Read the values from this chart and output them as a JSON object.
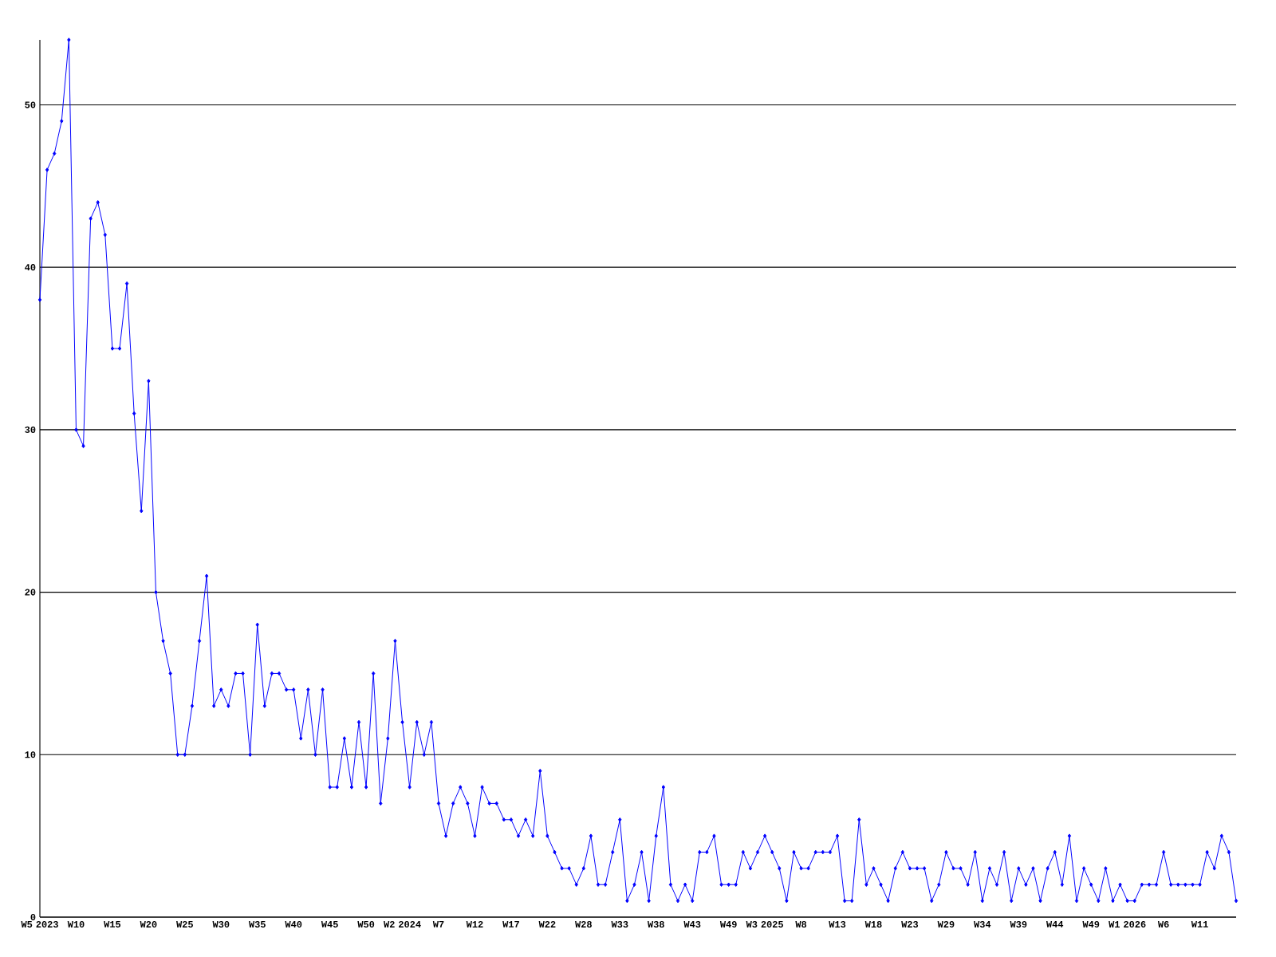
{
  "chart_data": {
    "type": "line",
    "categories": [
      "W5 2023",
      null,
      null,
      null,
      null,
      "W10",
      null,
      null,
      null,
      null,
      "W15",
      null,
      null,
      null,
      null,
      "W20",
      null,
      null,
      null,
      null,
      "W25",
      null,
      null,
      null,
      null,
      "W30",
      null,
      null,
      null,
      null,
      "W35",
      null,
      null,
      null,
      null,
      "W40",
      null,
      null,
      null,
      null,
      "W45",
      null,
      null,
      null,
      null,
      "W50",
      null,
      null,
      null,
      null,
      "W2 2024",
      null,
      null,
      null,
      null,
      "W7",
      null,
      null,
      null,
      null,
      "W12",
      null,
      null,
      null,
      null,
      "W17",
      null,
      null,
      null,
      null,
      "W22",
      null,
      null,
      null,
      null,
      "W28",
      null,
      null,
      null,
      null,
      "W33",
      null,
      null,
      null,
      null,
      "W38",
      null,
      null,
      null,
      null,
      "W43",
      null,
      null,
      null,
      null,
      "W49",
      null,
      null,
      null,
      null,
      "W3 2025",
      null,
      null,
      null,
      null,
      "W8",
      null,
      null,
      null,
      null,
      "W13",
      null,
      null,
      null,
      null,
      "W18",
      null,
      null,
      null,
      null,
      "W23",
      null,
      null,
      null,
      null,
      "W29",
      null,
      null,
      null,
      null,
      "W34",
      null,
      null,
      null,
      null,
      "W39",
      null,
      null,
      null,
      null,
      "W44",
      null,
      null,
      null,
      null,
      "W49",
      null,
      null,
      null,
      null,
      "W1 2026",
      null,
      null,
      null,
      null,
      "W6",
      null,
      null,
      null,
      null,
      "W11",
      null,
      null,
      null,
      null,
      null
    ],
    "values": [
      38,
      46,
      47,
      49,
      54,
      30,
      29,
      43,
      44,
      42,
      35,
      35,
      39,
      31,
      25,
      33,
      20,
      17,
      15,
      10,
      10,
      13,
      17,
      21,
      13,
      14,
      13,
      15,
      15,
      10,
      18,
      13,
      15,
      15,
      14,
      14,
      11,
      14,
      10,
      14,
      8,
      8,
      11,
      8,
      12,
      8,
      15,
      7,
      11,
      17,
      12,
      8,
      12,
      10,
      12,
      7,
      5,
      7,
      8,
      7,
      5,
      8,
      7,
      7,
      6,
      6,
      5,
      6,
      5,
      9,
      5,
      4,
      3,
      3,
      2,
      3,
      5,
      2,
      2,
      4,
      6,
      1,
      2,
      4,
      1,
      5,
      8,
      2,
      1,
      2,
      1,
      4,
      4,
      5,
      2,
      2,
      2,
      4,
      3,
      4,
      5,
      4,
      3,
      1,
      4,
      3,
      3,
      4,
      4,
      4,
      5,
      1,
      1,
      6,
      2,
      3,
      2,
      1,
      3,
      4,
      3,
      3,
      3,
      1,
      2,
      4,
      3,
      3,
      2,
      4,
      1,
      3,
      2,
      4,
      1,
      3,
      2,
      3,
      1,
      3,
      4,
      2,
      5,
      1,
      3,
      2,
      1,
      3,
      1,
      2,
      1,
      1,
      2,
      2,
      2,
      4,
      2,
      2,
      2,
      2,
      2,
      4,
      3,
      5,
      4,
      1
    ],
    "color": "#0000ff",
    "ylim": [
      0,
      54
    ],
    "yticks": [
      0,
      10,
      20,
      30,
      40,
      50
    ],
    "grid": "y",
    "marker": "diamond",
    "line_style": "solid"
  }
}
